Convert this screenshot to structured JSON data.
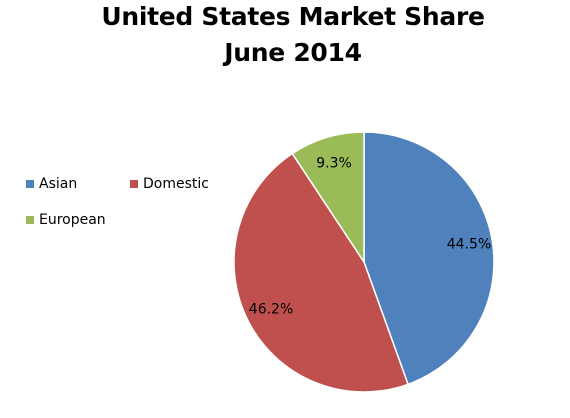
{
  "chart_data": {
    "type": "pie",
    "title": "United States Market Share",
    "subtitle": "June 2014",
    "legend_position": "left",
    "slices": [
      {
        "name": "Asian",
        "value": 44.5,
        "label": "44.5%",
        "color": "#4f81bd"
      },
      {
        "name": "Domestic",
        "value": 46.2,
        "label": "46.2%",
        "color": "#c0504d"
      },
      {
        "name": "European",
        "value": 9.3,
        "label": "9.3%",
        "color": "#9bbb59"
      }
    ]
  }
}
